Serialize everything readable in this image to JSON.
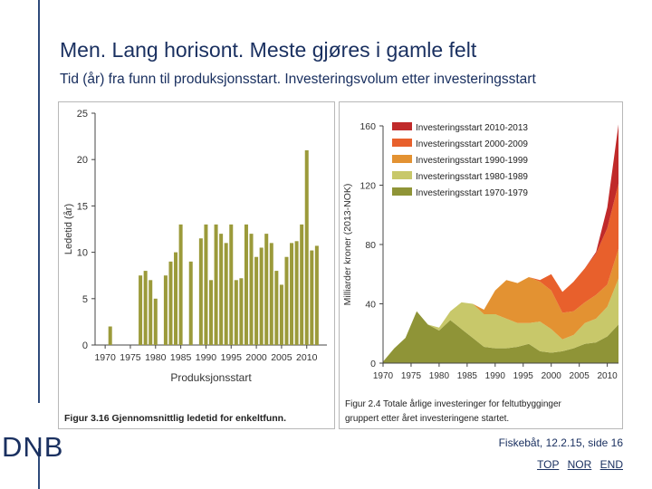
{
  "header": {
    "title": "Men. Lang horisont. Meste gjøres i gamle felt",
    "subtitle": "Tid (år) fra funn til produksjonsstart. Investeringsvolum etter investeringsstart"
  },
  "footer": {
    "logo": "DNB",
    "source": "Fiskebåt, 12.2.15, side 16",
    "links": [
      "TOP",
      "NOR",
      "END"
    ]
  },
  "chart_data": [
    {
      "type": "bar",
      "ylabel": "Ledetid (år)",
      "xlabel": "Produksjonsstart",
      "caption": "Figur 3.16 Gjennomsnittlig ledetid for enkeltfunn.",
      "ylim": [
        0,
        25
      ],
      "yticks": [
        0,
        5,
        10,
        15,
        20,
        25
      ],
      "xticks": [
        1970,
        1975,
        1980,
        1985,
        1990,
        1995,
        2000,
        2005,
        2010
      ],
      "xlim": [
        1968,
        2014
      ],
      "x": [
        1971,
        1977,
        1978,
        1979,
        1980,
        1982,
        1983,
        1984,
        1985,
        1987,
        1989,
        1990,
        1991,
        1992,
        1993,
        1994,
        1995,
        1996,
        1997,
        1998,
        1999,
        2000,
        2001,
        2002,
        2003,
        2004,
        2005,
        2006,
        2007,
        2008,
        2009,
        2010,
        2011,
        2012
      ],
      "values": [
        2,
        7.5,
        8,
        7,
        5,
        7.5,
        9,
        10,
        13,
        9,
        11.5,
        13,
        7,
        13,
        12,
        11,
        13,
        7,
        7.2,
        13,
        12,
        9.5,
        10.5,
        12,
        11,
        8,
        6.5,
        9.5,
        11,
        11.2,
        13,
        21,
        10.2,
        10.7
      ],
      "color": "#9b9a3a"
    },
    {
      "type": "area",
      "ylabel": "Milliarder kroner (2013-NOK)",
      "caption": "Figur 2.4 Totale årlige investeringer for feltutbygginger gruppert etter året investeringene startet.",
      "ylim": [
        0,
        160
      ],
      "yticks": [
        0,
        40,
        80,
        120,
        160
      ],
      "xticks": [
        1970,
        1975,
        1980,
        1985,
        1990,
        1995,
        2000,
        2005,
        2010
      ],
      "xlim": [
        1970,
        2012
      ],
      "x": [
        1970,
        1972,
        1974,
        1976,
        1978,
        1980,
        1982,
        1984,
        1986,
        1988,
        1990,
        1992,
        1994,
        1996,
        1998,
        2000,
        2002,
        2004,
        2006,
        2008,
        2010,
        2012
      ],
      "series": [
        {
          "name": "Investeringsstart 1970-1979",
          "color": "#8f9437",
          "values": [
            1,
            10,
            17,
            35,
            26,
            22,
            29,
            23,
            17,
            11,
            10,
            10,
            11,
            13,
            8,
            7,
            8,
            10,
            13,
            14,
            18,
            26
          ]
        },
        {
          "name": "Investeringsstart 1980-1989",
          "color": "#c8c86a",
          "values": [
            0,
            0,
            0,
            0,
            0,
            2,
            6,
            18,
            23,
            22,
            23,
            20,
            16,
            14,
            20,
            16,
            8,
            9,
            14,
            16,
            20,
            31
          ]
        },
        {
          "name": "Investeringsstart 1990-1999",
          "color": "#e39232",
          "values": [
            0,
            0,
            0,
            0,
            0,
            0,
            0,
            0,
            0,
            3,
            16,
            26,
            27,
            31,
            27,
            26,
            18,
            16,
            14,
            16,
            15,
            20
          ]
        },
        {
          "name": "Investeringsstart 2000-2009",
          "color": "#e8602c",
          "values": [
            0,
            0,
            0,
            0,
            0,
            0,
            0,
            0,
            0,
            0,
            0,
            0,
            0,
            0,
            1,
            11,
            14,
            20,
            23,
            28,
            38,
            44
          ]
        },
        {
          "name": "Investeringsstart 2010-2013",
          "color": "#c02a2a",
          "values": [
            0,
            0,
            0,
            0,
            0,
            0,
            0,
            0,
            0,
            0,
            0,
            0,
            0,
            0,
            0,
            0,
            0,
            0,
            0,
            1,
            14,
            40
          ]
        }
      ]
    }
  ]
}
